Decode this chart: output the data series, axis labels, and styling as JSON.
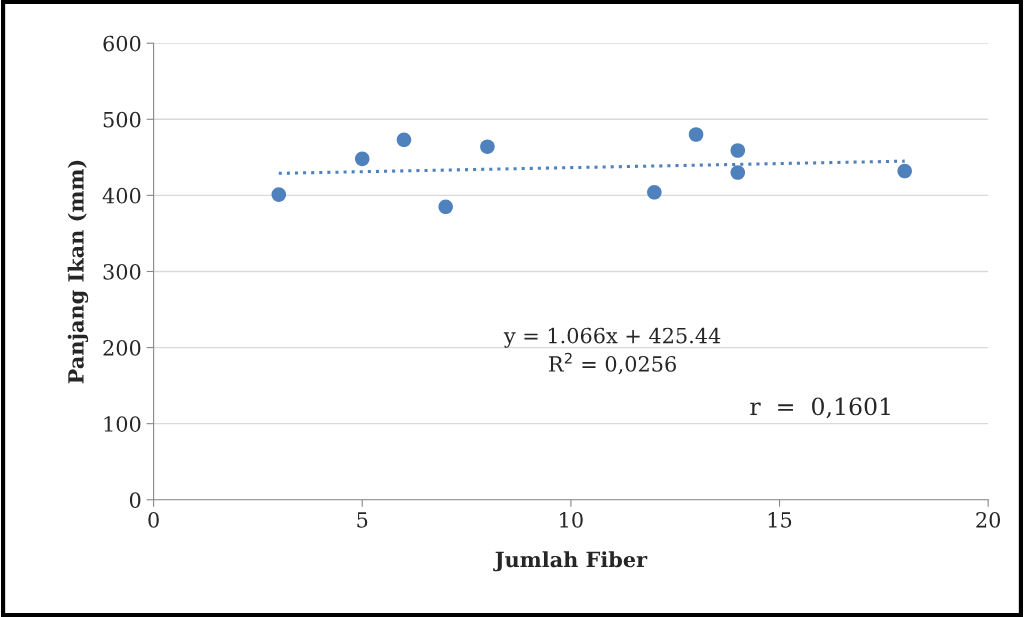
{
  "chart_data": {
    "type": "scatter",
    "xlabel": "Jumlah Fiber",
    "ylabel": "Panjang Ikan (mm)",
    "xlim": [
      0,
      20
    ],
    "xticks": [
      0,
      5,
      10,
      15,
      20
    ],
    "ylim": [
      0,
      600
    ],
    "yticks": [
      0,
      100,
      200,
      300,
      400,
      500,
      600
    ],
    "grid": "y",
    "series": [
      {
        "marker": "circle",
        "color": "#4f81bd",
        "x": [
          3,
          5,
          6,
          7,
          8,
          12,
          13,
          14,
          14,
          18
        ],
        "values": [
          401,
          448,
          473,
          385,
          464,
          404,
          480,
          459,
          430,
          432
        ]
      },
      {
        "type": "line",
        "color": "#4f81bd",
        "line_style": "dotted",
        "x": [
          3,
          18
        ],
        "values": [
          429,
          445
        ]
      }
    ],
    "annotations": [
      "y = 1.066x + 425.44",
      "R$^{2}$ = 0,0256",
      "r  =  0,1601"
    ]
  }
}
